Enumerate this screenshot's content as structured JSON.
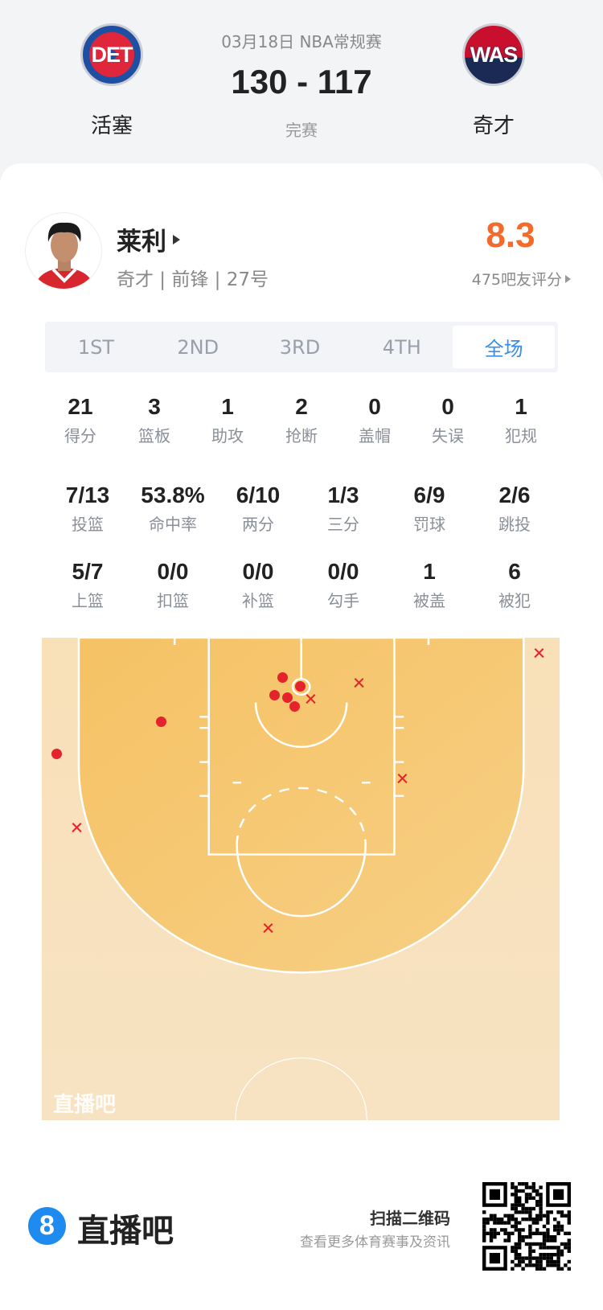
{
  "header": {
    "date_league": "03月18日 NBA常规赛",
    "score": "130 - 117",
    "status": "完赛",
    "home": {
      "name": "活塞",
      "logo_text": "DET"
    },
    "away": {
      "name": "奇才",
      "logo_text": "WAS"
    }
  },
  "player": {
    "name": "莱利",
    "info": "奇才 | 前锋 | 27号",
    "rating": "8.3",
    "rating_count": "475吧友评分",
    "rating_color": "#f5692a"
  },
  "tabs": [
    {
      "label": "1ST"
    },
    {
      "label": "2ND"
    },
    {
      "label": "3RD"
    },
    {
      "label": "4TH"
    },
    {
      "label": "全场",
      "active": true
    }
  ],
  "stats": {
    "row1": [
      {
        "v": "21",
        "l": "得分"
      },
      {
        "v": "3",
        "l": "篮板"
      },
      {
        "v": "1",
        "l": "助攻"
      },
      {
        "v": "2",
        "l": "抢断"
      },
      {
        "v": "0",
        "l": "盖帽"
      },
      {
        "v": "0",
        "l": "失误"
      },
      {
        "v": "1",
        "l": "犯规"
      }
    ],
    "row2": [
      {
        "v": "7/13",
        "l": "投篮"
      },
      {
        "v": "53.8%",
        "l": "命中率"
      },
      {
        "v": "6/10",
        "l": "两分"
      },
      {
        "v": "1/3",
        "l": "三分"
      },
      {
        "v": "6/9",
        "l": "罚球"
      },
      {
        "v": "2/6",
        "l": "跳投"
      }
    ],
    "row3": [
      {
        "v": "5/7",
        "l": "上篮"
      },
      {
        "v": "0/0",
        "l": "扣篮"
      },
      {
        "v": "0/0",
        "l": "补篮"
      },
      {
        "v": "0/0",
        "l": "勾手"
      },
      {
        "v": "1",
        "l": "被盖"
      },
      {
        "v": "6",
        "l": "被犯"
      }
    ]
  },
  "chart_data": {
    "type": "scatter",
    "watermark": "直播吧",
    "made_color": "#e5232c",
    "shots": [
      {
        "x": -1.8,
        "y": 3.9,
        "made": true
      },
      {
        "x": -0.1,
        "y": 4.7,
        "made": true
      },
      {
        "x": -2.6,
        "y": 5.6,
        "made": true
      },
      {
        "x": -1.3,
        "y": 5.8,
        "made": true
      },
      {
        "x": -0.6,
        "y": 6.7,
        "made": true
      },
      {
        "x": -13.5,
        "y": 8.2,
        "made": true
      },
      {
        "x": -23.6,
        "y": 11.3,
        "made": true
      },
      {
        "x": 23.0,
        "y": 1.5,
        "made": false
      },
      {
        "x": 5.6,
        "y": 4.4,
        "made": false
      },
      {
        "x": 0.9,
        "y": 6.0,
        "made": false
      },
      {
        "x": 9.8,
        "y": 13.7,
        "made": false
      },
      {
        "x": -21.7,
        "y": 18.5,
        "made": false
      },
      {
        "x": -3.2,
        "y": 28.3,
        "made": false
      }
    ]
  },
  "footer": {
    "brand": "直播吧",
    "brand_icon": "8",
    "qr_title": "扫描二维码",
    "qr_subtitle": "查看更多体育赛事及资讯"
  }
}
